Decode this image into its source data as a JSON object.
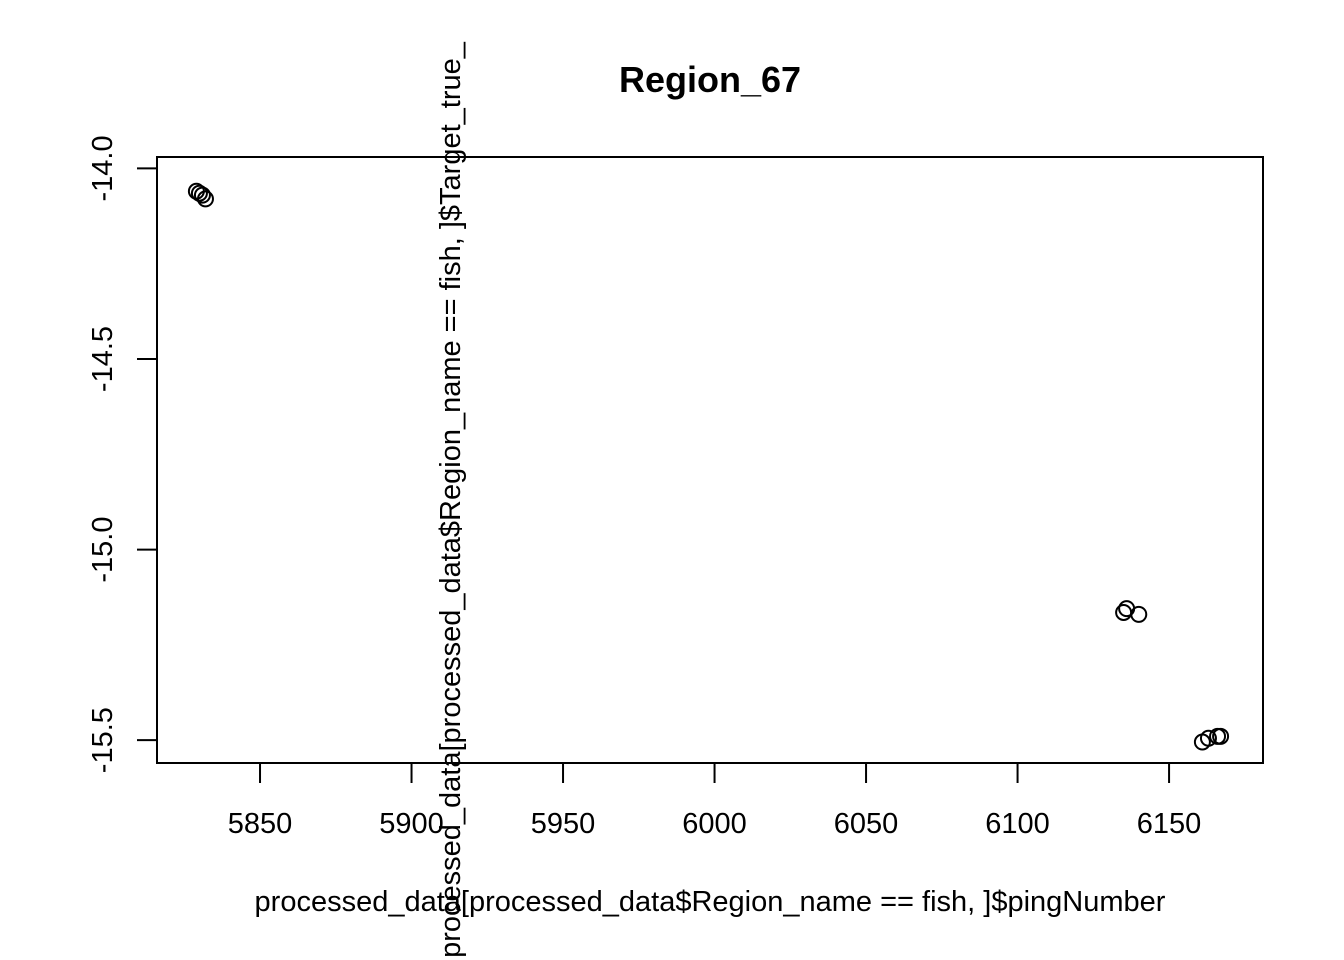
{
  "chart_data": {
    "type": "scatter",
    "title": "Region_67",
    "xlabel": "processed_data[processed_data$Region_name == fish, ]$pingNumber",
    "ylabel": "processed_data[processed_data$Region_name == fish, ]$Target_true_",
    "xlim": [
      5816,
      6181
    ],
    "ylim": [
      -15.56,
      -13.97
    ],
    "x_ticks": [
      5850,
      5900,
      5950,
      6000,
      6050,
      6100,
      6150
    ],
    "x_tick_labels": [
      "5850",
      "5900",
      "5950",
      "6000",
      "6050",
      "6100",
      "6150"
    ],
    "y_ticks": [
      -14.0,
      -14.5,
      -15.0,
      -15.5
    ],
    "y_tick_labels": [
      "-14.0",
      "-14.5",
      "-15.0",
      "-15.5"
    ],
    "marker": "open-circle",
    "marker_color": "#000000",
    "grid": false,
    "legend": "none",
    "points": [
      {
        "x": 5829,
        "y": -14.06
      },
      {
        "x": 5830,
        "y": -14.065
      },
      {
        "x": 5831,
        "y": -14.07
      },
      {
        "x": 5832,
        "y": -14.08
      },
      {
        "x": 6135,
        "y": -15.165
      },
      {
        "x": 6136,
        "y": -15.155
      },
      {
        "x": 6140,
        "y": -15.17
      },
      {
        "x": 6161,
        "y": -15.505
      },
      {
        "x": 6163,
        "y": -15.495
      },
      {
        "x": 6166,
        "y": -15.49
      },
      {
        "x": 6167,
        "y": -15.49
      }
    ]
  }
}
